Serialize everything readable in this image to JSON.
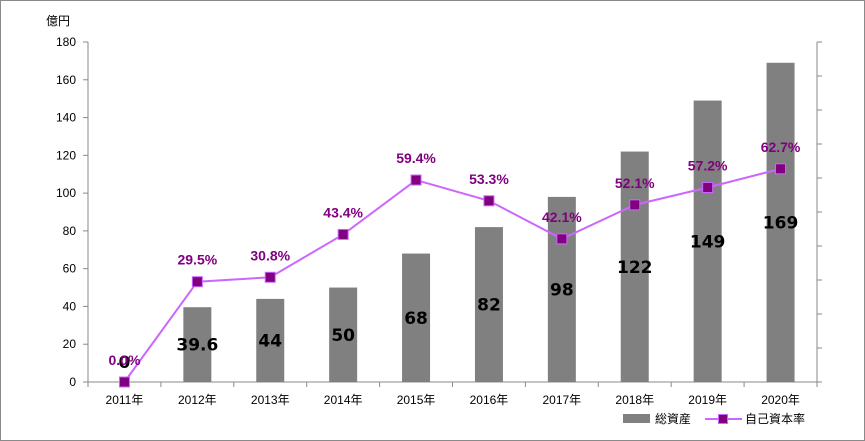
{
  "chart_data": {
    "type": "bar",
    "unit_label": "億円",
    "categories": [
      "2011年",
      "2012年",
      "2013年",
      "2014年",
      "2015年",
      "2016年",
      "2017年",
      "2018年",
      "2019年",
      "2020年"
    ],
    "series": [
      {
        "name": "総資産",
        "type": "bar",
        "values": [
          0,
          39.6,
          44,
          50,
          68,
          82,
          98,
          122,
          149,
          169
        ],
        "labels": [
          "0",
          "39.6",
          "44",
          "50",
          "68",
          "82",
          "98",
          "122",
          "149",
          "169"
        ],
        "color": "#808080"
      },
      {
        "name": "自己資本率",
        "type": "line",
        "values": [
          0.0,
          29.5,
          30.8,
          43.4,
          59.4,
          53.3,
          42.1,
          52.1,
          57.2,
          62.7
        ],
        "labels": [
          "0.0%",
          "29.5%",
          "30.8%",
          "43.4%",
          "59.4%",
          "53.3%",
          "42.1%",
          "52.1%",
          "57.2%",
          "62.7%"
        ],
        "color": "#cc66ff",
        "marker_color": "#800080"
      }
    ],
    "y_left": {
      "min": 0,
      "max": 180,
      "ticks": [
        0,
        20,
        40,
        60,
        80,
        100,
        120,
        140,
        160,
        180
      ]
    },
    "y_right": {
      "min": 0,
      "max": 100,
      "tick_count": 10,
      "labels_shown": false
    },
    "grid": false,
    "legend_position": "bottom-right"
  }
}
